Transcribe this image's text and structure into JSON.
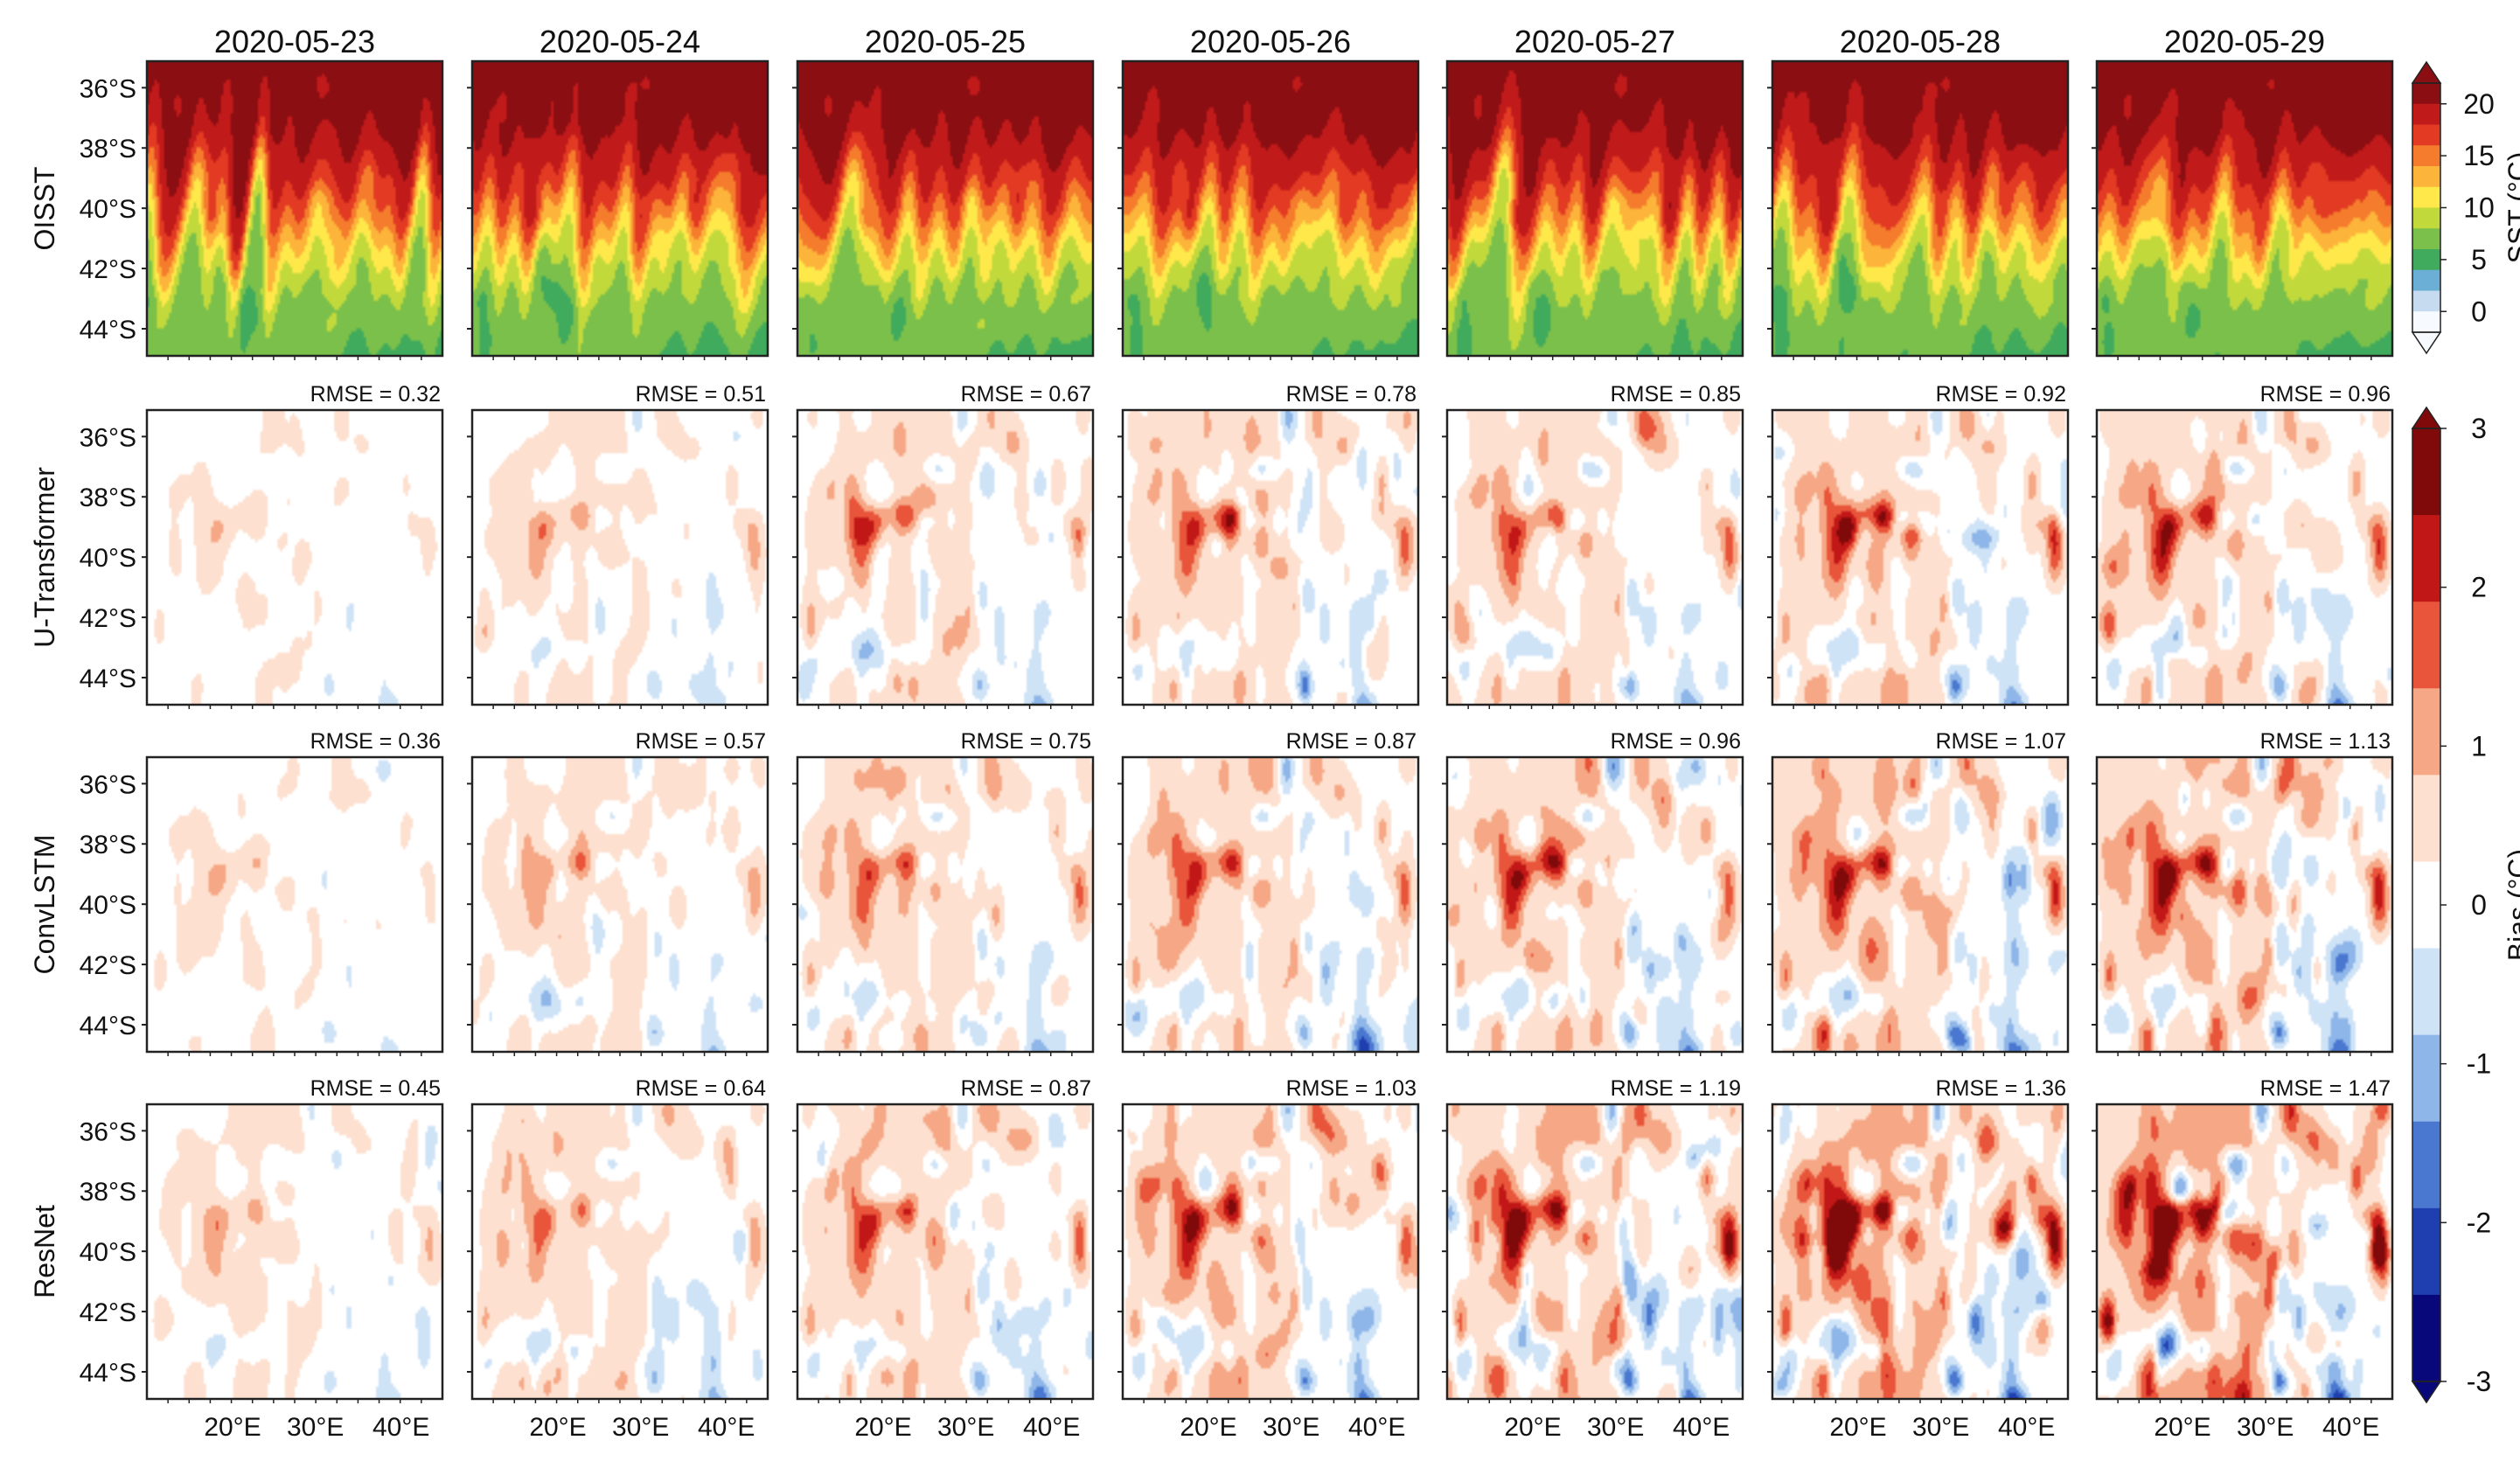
{
  "chart_data": {
    "type": "heatmap",
    "title": "",
    "dates": [
      "2020-05-23",
      "2020-05-24",
      "2020-05-25",
      "2020-05-26",
      "2020-05-27",
      "2020-05-28",
      "2020-05-29"
    ],
    "rows": [
      {
        "label": "OISST",
        "kind": "sst",
        "rmse_texts": []
      },
      {
        "label": "U-Transformer",
        "kind": "bias",
        "rmse": [
          0.32,
          0.51,
          0.67,
          0.78,
          0.85,
          0.92,
          0.96
        ],
        "rmse_texts": [
          "RMSE = 0.32",
          "RMSE = 0.51",
          "RMSE = 0.67",
          "RMSE = 0.78",
          "RMSE = 0.85",
          "RMSE = 0.92",
          "RMSE = 0.96"
        ]
      },
      {
        "label": "ConvLSTM",
        "kind": "bias",
        "rmse": [
          0.36,
          0.57,
          0.75,
          0.87,
          0.96,
          1.07,
          1.13
        ],
        "rmse_texts": [
          "RMSE = 0.36",
          "RMSE = 0.57",
          "RMSE = 0.75",
          "RMSE = 0.87",
          "RMSE = 0.96",
          "RMSE = 1.07",
          "RMSE = 1.13"
        ]
      },
      {
        "label": "ResNet",
        "kind": "bias",
        "rmse": [
          0.45,
          0.64,
          0.87,
          1.03,
          1.19,
          1.36,
          1.47
        ],
        "rmse_texts": [
          "RMSE = 0.45",
          "RMSE = 0.64",
          "RMSE = 0.87",
          "RMSE = 1.03",
          "RMSE = 1.19",
          "RMSE = 1.36",
          "RMSE = 1.47"
        ]
      }
    ],
    "y_ticks": [
      "36°S",
      "38°S",
      "40°S",
      "42°S",
      "44°S"
    ],
    "x_ticks": [
      "20°E",
      "30°E",
      "40°E"
    ],
    "y_range_deg_south": [
      35,
      45
    ],
    "x_range_deg_east": [
      10,
      45
    ],
    "sst_colorbar": {
      "label": "SST (°C)",
      "ticks": [
        "0",
        "5",
        "10",
        "15",
        "20"
      ],
      "range": [
        -2,
        22
      ]
    },
    "bias_colorbar": {
      "label": "Bias (°C)",
      "ticks": [
        "-3",
        "-2",
        "-1",
        "0",
        "1",
        "2",
        "3"
      ],
      "range": [
        -3,
        3
      ]
    },
    "colors": {
      "sst": [
        "#f7fbff",
        "#c6dbef",
        "#6baed6",
        "#41ab5d",
        "#7bc04a",
        "#c2d93c",
        "#fee84a",
        "#fdb43b",
        "#f47c2c",
        "#e23a23",
        "#c11a1a",
        "#8a0e12"
      ],
      "bias": [
        "#08087a",
        "#1f3fb0",
        "#4a78d0",
        "#8eb6e8",
        "#cfe3f7",
        "#ffffff",
        "#fde0cf",
        "#f6a886",
        "#e8553a",
        "#c21717",
        "#800a0a"
      ]
    }
  }
}
